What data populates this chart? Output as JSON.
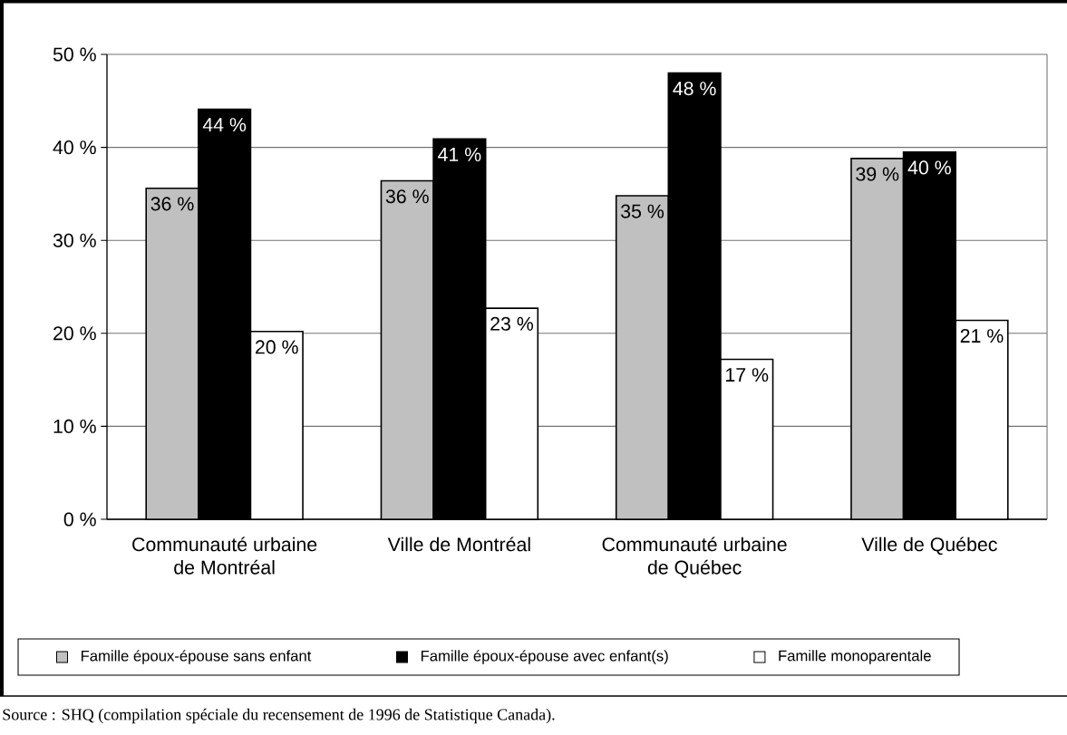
{
  "chart_data": {
    "type": "bar",
    "categories": [
      "Communauté urbaine de Montréal",
      "Ville de Montréal",
      "Communauté urbaine de Québec",
      "Ville de Québec"
    ],
    "series": [
      {
        "name": "Famille époux-épouse sans enfant",
        "color": "#c0c0c0",
        "values": [
          35.6,
          36.4,
          34.8,
          38.8
        ],
        "value_labels": [
          "36 %",
          "36 %",
          "35 %",
          "39 %"
        ]
      },
      {
        "name": "Famille époux-épouse avec enfant(s)",
        "color": "#000000",
        "values": [
          44.1,
          40.9,
          48.0,
          39.5
        ],
        "value_labels": [
          "44 %",
          "41 %",
          "48 %",
          "40 %"
        ]
      },
      {
        "name": "Famille monoparentale",
        "color": "#ffffff",
        "values": [
          20.2,
          22.7,
          17.2,
          21.4
        ],
        "value_labels": [
          "20 %",
          "23 %",
          "17 %",
          "21 %"
        ]
      }
    ],
    "ylim": [
      0,
      50
    ],
    "yticks": [
      {
        "value": 0,
        "label": "0 %"
      },
      {
        "value": 10,
        "label": "10 %"
      },
      {
        "value": 20,
        "label": "20 %"
      },
      {
        "value": 30,
        "label": "30 %"
      },
      {
        "value": 40,
        "label": "40 %"
      },
      {
        "value": 50,
        "label": "50 %"
      }
    ],
    "grid": "y",
    "legend": "bottom",
    "annotations": [
      "Source : SHQ (compilation spéciale du recensement de 1996 de Statistique Canada)."
    ]
  }
}
